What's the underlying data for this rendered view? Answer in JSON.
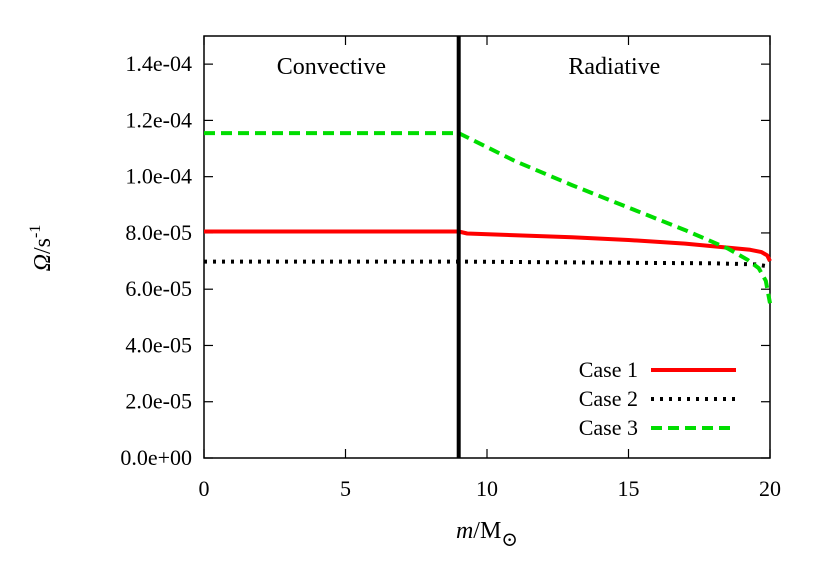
{
  "chart_data": {
    "type": "line",
    "xlabel": {
      "main": "m",
      "unit": "/M",
      "sub": "⊙"
    },
    "ylabel": {
      "main": "Ω",
      "unit": "/s",
      "sup": "-1"
    },
    "xlim": [
      0,
      20
    ],
    "ylim": [
      0,
      0.00015
    ],
    "xticks": [
      0,
      5,
      10,
      15,
      20
    ],
    "yticks": [
      0,
      2e-05,
      4e-05,
      6e-05,
      8e-05,
      0.0001,
      0.00012,
      0.00014
    ],
    "xtick_labels": [
      "0",
      "5",
      "10",
      "15",
      "20"
    ],
    "ytick_labels": [
      "0.0e+00",
      "2.0e-05",
      "4.0e-05",
      "6.0e-05",
      "8.0e-05",
      "1.0e-04",
      "1.2e-04",
      "1.4e-04"
    ],
    "boundary_x": 9,
    "regions": [
      {
        "label": "Convective",
        "x": 4.5
      },
      {
        "label": "Radiative",
        "x": 14.5
      }
    ],
    "grid": false,
    "legend_position": "bottom-right",
    "series": [
      {
        "name": "Case 1",
        "color": "#ff0000",
        "dash": "solid",
        "x": [
          0,
          9,
          9.3,
          11,
          13,
          15,
          17,
          18.5,
          19.3,
          19.7,
          19.9,
          20
        ],
        "y": [
          8.05e-05,
          8.05e-05,
          7.98e-05,
          7.92e-05,
          7.85e-05,
          7.75e-05,
          7.62e-05,
          7.48e-05,
          7.4e-05,
          7.32e-05,
          7.2e-05,
          7e-05
        ]
      },
      {
        "name": "Case 2",
        "color": "#000000",
        "dash": "dotted",
        "x": [
          0,
          9,
          12,
          15,
          18,
          19.5,
          20
        ],
        "y": [
          6.98e-05,
          6.98e-05,
          6.96e-05,
          6.94e-05,
          6.92e-05,
          6.88e-05,
          6.8e-05
        ]
      },
      {
        "name": "Case 3",
        "color": "#00dd00",
        "dash": "dashed",
        "x": [
          0,
          9,
          11,
          13,
          15,
          17,
          18.5,
          19.2,
          19.6,
          19.85,
          20
        ],
        "y": [
          0.0001155,
          0.0001155,
          0.0001055,
          9.7e-05,
          8.9e-05,
          8.1e-05,
          7.45e-05,
          7.05e-05,
          6.75e-05,
          6.3e-05,
          5.5e-05
        ]
      }
    ]
  }
}
